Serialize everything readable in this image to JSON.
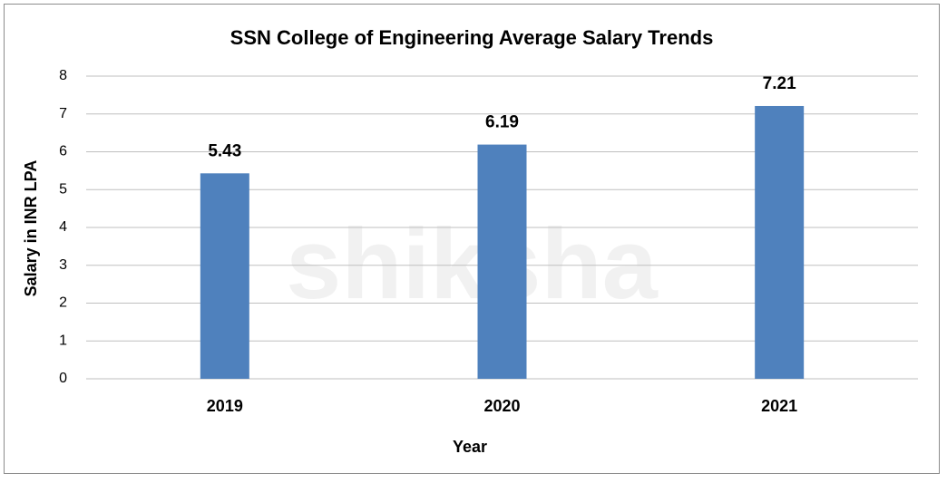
{
  "chart_data": {
    "type": "bar",
    "title": "SSN College of Engineering Average Salary Trends",
    "x_label": "Year",
    "y_label": "Salary in INR LPA",
    "watermark": "shiksha",
    "categories": [
      "2019",
      "2020",
      "2021"
    ],
    "values": [
      5.43,
      6.19,
      7.21
    ],
    "color": "#4f81bd",
    "ylim": [
      0,
      8
    ],
    "yticks": [
      0,
      1,
      2,
      3,
      4,
      5,
      6,
      7,
      8
    ],
    "grid": true
  }
}
